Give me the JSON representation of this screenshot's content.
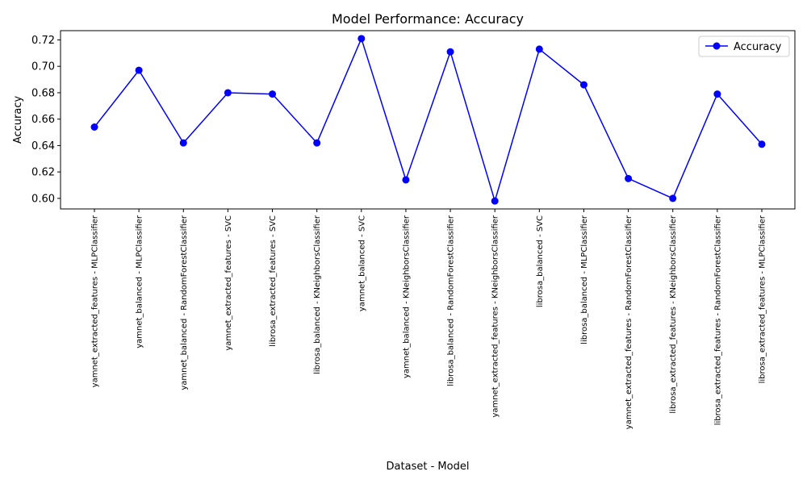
{
  "chart_data": {
    "type": "line",
    "title": "Model Performance: Accuracy",
    "xlabel": "Dataset - Model",
    "ylabel": "Accuracy",
    "ylim": [
      0.592,
      0.727
    ],
    "yticks": [
      "0.60",
      "0.62",
      "0.64",
      "0.66",
      "0.68",
      "0.70",
      "0.72"
    ],
    "grid": false,
    "legend_position": "upper right",
    "colors": {
      "series": "#0000ff"
    },
    "categories": [
      "yamnet_extracted_features - MLPClassifier",
      "yamnet_balanced - MLPClassifier",
      "yamnet_balanced - RandomForestClassifier",
      "yamnet_extracted_features - SVC",
      "librosa_extracted_features - SVC",
      "librosa_balanced - KNeighborsClassifier",
      "yamnet_balanced - SVC",
      "yamnet_balanced - KNeighborsClassifier",
      "librosa_balanced - RandomForestClassifier",
      "yamnet_extracted_features - KNeighborsClassifier",
      "librosa_balanced - SVC",
      "librosa_balanced - MLPClassifier",
      "yamnet_extracted_features - RandomForestClassifier",
      "librosa_extracted_features - KNeighborsClassifier",
      "librosa_extracted_features - RandomForestClassifier",
      "librosa_extracted_features - MLPClassifier"
    ],
    "series": [
      {
        "name": "Accuracy",
        "marker": "circle",
        "values": [
          0.654,
          0.697,
          0.642,
          0.68,
          0.679,
          0.642,
          0.721,
          0.614,
          0.711,
          0.598,
          0.713,
          0.686,
          0.615,
          0.6,
          0.679,
          0.641
        ]
      }
    ]
  }
}
